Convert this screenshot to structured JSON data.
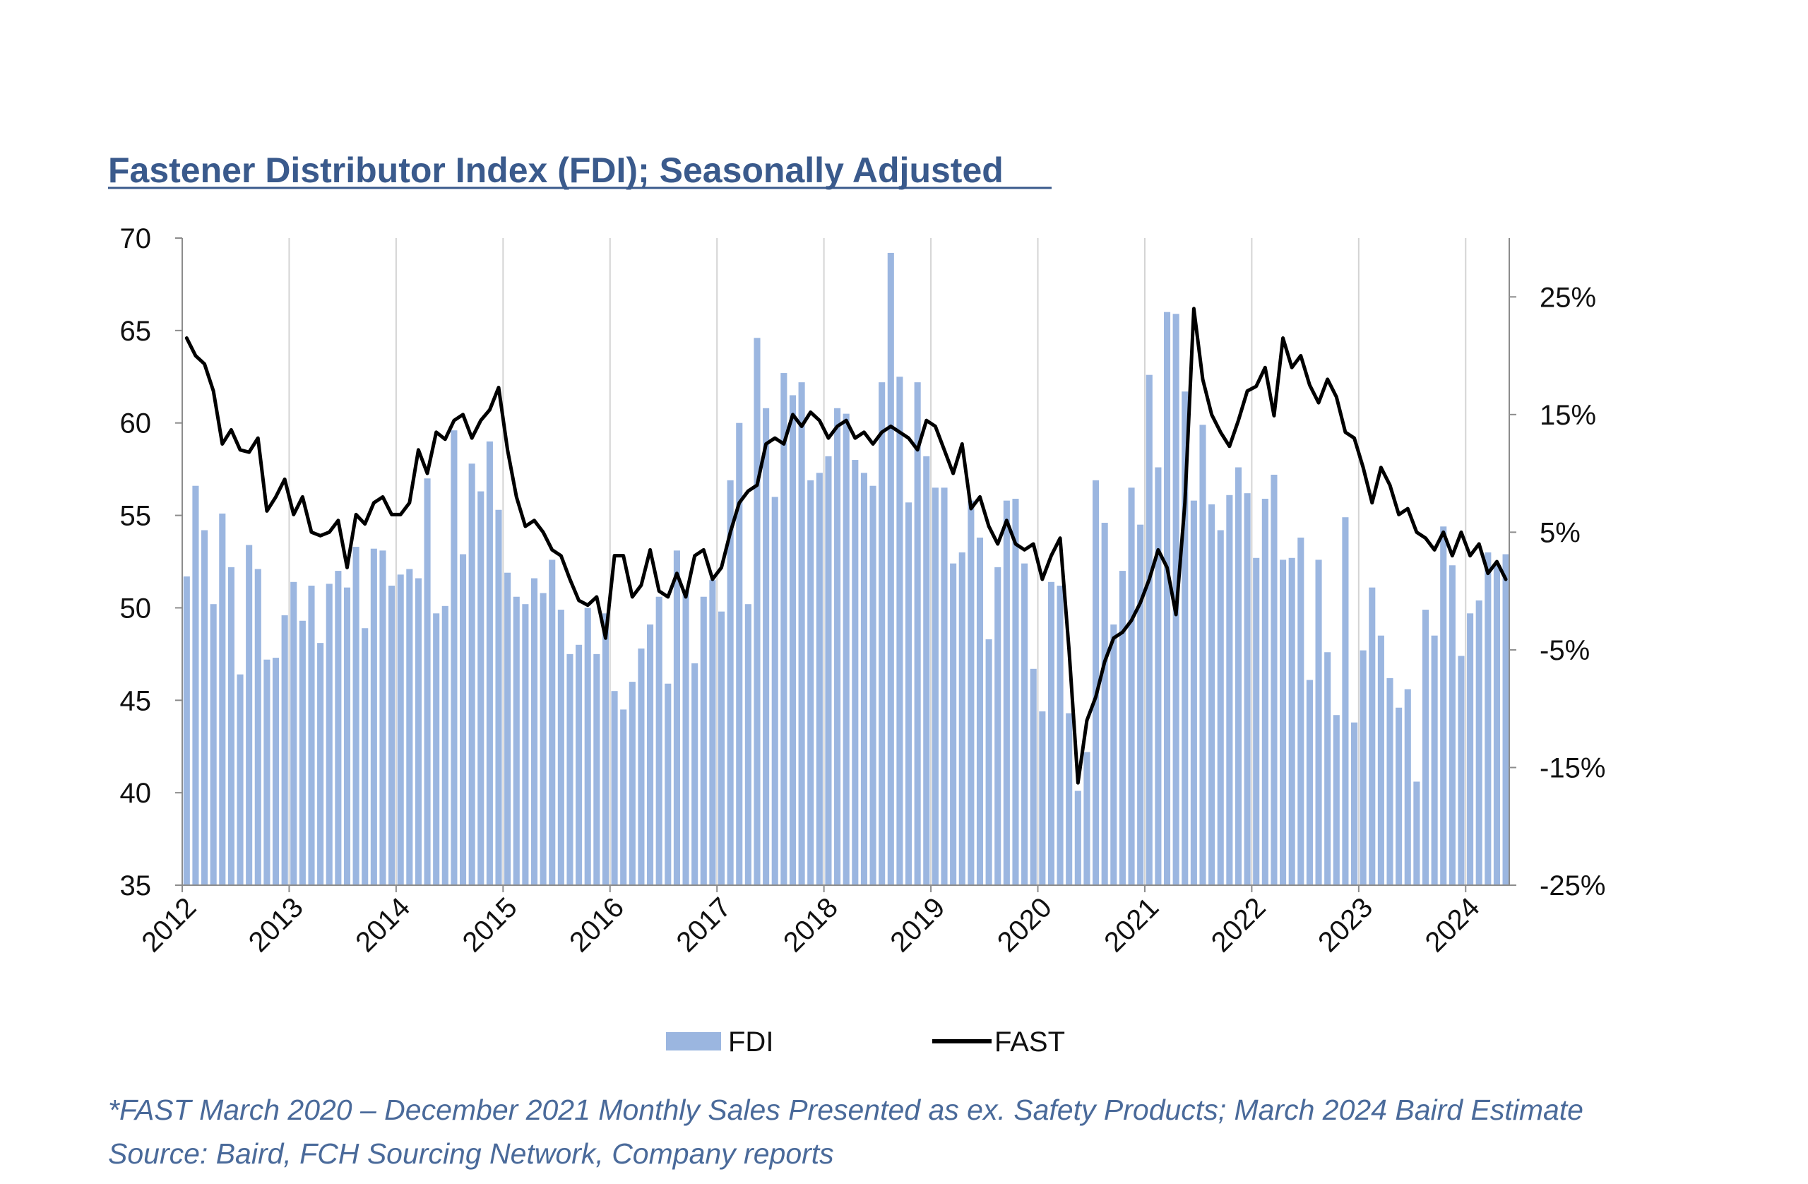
{
  "chart_data": {
    "type": "bar+line",
    "title": "Fastener Distributor Index (FDI); Seasonally Adjusted",
    "x_tick_labels": [
      "2012",
      "2013",
      "2014",
      "2015",
      "2016",
      "2017",
      "2018",
      "2019",
      "2020",
      "2021",
      "2022",
      "2023",
      "2024"
    ],
    "y_left": {
      "range": [
        35,
        70
      ],
      "ticks": [
        "70",
        "65",
        "60",
        "55",
        "50",
        "45",
        "40",
        "35"
      ],
      "tick_values": [
        70,
        65,
        60,
        55,
        50,
        45,
        40,
        35
      ]
    },
    "y_right": {
      "range": [
        -25,
        30
      ],
      "ticks": [
        "25%",
        "15%",
        "5%",
        "-5%",
        "-15%",
        "-25%"
      ],
      "tick_values": [
        25,
        15,
        5,
        -5,
        -15,
        -25
      ]
    },
    "grid": "vertical",
    "legend": {
      "position": "bottom",
      "entries": [
        "FDI",
        "FAST"
      ]
    },
    "series": [
      {
        "name": "FDI",
        "type": "bar",
        "axis": "left",
        "color": "#9bb6e0",
        "start": "2012-01",
        "values": [
          51.7,
          56.6,
          54.2,
          50.2,
          55.1,
          52.2,
          46.4,
          53.4,
          52.1,
          47.2,
          47.3,
          49.6,
          51.4,
          49.3,
          51.2,
          48.1,
          51.3,
          52.0,
          51.1,
          53.3,
          48.9,
          53.2,
          53.1,
          51.2,
          51.8,
          52.1,
          51.6,
          57.0,
          49.7,
          50.1,
          59.6,
          52.9,
          57.8,
          56.3,
          59.0,
          55.3,
          51.9,
          50.6,
          50.2,
          51.6,
          50.8,
          52.6,
          49.9,
          47.5,
          48.0,
          50.0,
          47.5,
          49.7,
          45.5,
          44.5,
          46.0,
          47.8,
          49.1,
          50.6,
          45.9,
          53.1,
          51.0,
          47.0,
          50.6,
          51.5,
          49.8,
          56.9,
          60.0,
          50.2,
          64.6,
          60.8,
          56.0,
          62.7,
          61.5,
          62.2,
          56.9,
          57.3,
          58.2,
          60.8,
          60.5,
          58.0,
          57.3,
          56.6,
          62.2,
          69.2,
          62.5,
          55.7,
          62.2,
          58.2,
          56.5,
          56.5,
          52.4,
          53.0,
          55.8,
          53.8,
          48.3,
          52.2,
          55.8,
          55.9,
          52.4,
          46.7,
          44.4,
          51.4,
          51.2,
          44.3,
          40.1,
          42.2,
          56.9,
          54.6,
          49.1,
          52.0,
          56.5,
          54.5,
          62.6,
          57.6,
          66.0,
          65.9,
          61.7,
          55.8,
          59.9,
          55.6,
          54.2,
          56.1,
          57.6,
          56.2,
          52.7,
          55.9,
          57.2,
          52.6,
          52.7,
          53.8,
          46.1,
          52.6,
          47.6,
          44.2,
          54.9,
          43.8,
          47.7,
          51.1,
          48.5,
          46.2,
          44.6,
          45.6,
          40.6,
          49.9,
          48.5,
          54.4,
          52.3,
          47.4,
          49.7,
          50.4,
          53.0,
          52.4,
          52.9
        ]
      },
      {
        "name": "FAST",
        "type": "line",
        "axis": "right",
        "unit": "%",
        "color": "#000000",
        "start": "2012-01",
        "values": [
          21.5,
          20.0,
          19.3,
          17.0,
          12.5,
          13.7,
          12.0,
          11.8,
          13.0,
          6.8,
          8.0,
          9.5,
          6.5,
          8.0,
          5.0,
          4.7,
          5.0,
          6.0,
          2.0,
          6.5,
          5.7,
          7.5,
          8.0,
          6.5,
          6.5,
          7.5,
          12.0,
          10.0,
          13.5,
          12.9,
          14.5,
          15.0,
          13.0,
          14.5,
          15.4,
          17.3,
          12.0,
          8.0,
          5.5,
          6.0,
          5.0,
          3.5,
          3.0,
          1.0,
          -0.8,
          -1.2,
          -0.5,
          -4.0,
          3.0,
          3.0,
          -0.5,
          0.5,
          3.5,
          0.0,
          -0.5,
          1.5,
          -0.5,
          3.0,
          3.5,
          1.0,
          2.0,
          5.0,
          7.5,
          8.5,
          9.0,
          12.5,
          13.0,
          12.5,
          15.0,
          14.0,
          15.2,
          14.5,
          13.0,
          14.0,
          14.5,
          13.0,
          13.5,
          12.5,
          13.5,
          14.0,
          13.5,
          13.0,
          12.0,
          14.5,
          14.0,
          12.0,
          10.0,
          12.5,
          7.0,
          8.0,
          5.5,
          4.0,
          6.0,
          4.0,
          3.5,
          4.0,
          1.0,
          3.0,
          4.5,
          -5.0,
          -16.3,
          -11.0,
          -9.0,
          -6.0,
          -4.0,
          -3.5,
          -2.5,
          -1.0,
          1.0,
          3.5,
          2.0,
          -2.0,
          7.5,
          24.0,
          18.0,
          15.0,
          13.5,
          12.3,
          14.5,
          17.0,
          17.4,
          19.0,
          14.9,
          21.5,
          19.0,
          20.0,
          17.5,
          16.0,
          18.0,
          16.5,
          13.5,
          13.0,
          10.5,
          7.5,
          10.5,
          9.0,
          6.5,
          7.0,
          5.0,
          4.5,
          3.5,
          5.0,
          3.0,
          5.0,
          3.0,
          4.0,
          1.5,
          2.5,
          1.0
        ]
      }
    ]
  },
  "footnote": {
    "line1": "*FAST March 2020 – December 2021 Monthly Sales Presented as ex. Safety Products; March 2024 Baird Estimate",
    "line2": "Source: Baird, FCH Sourcing Network, Company reports"
  }
}
